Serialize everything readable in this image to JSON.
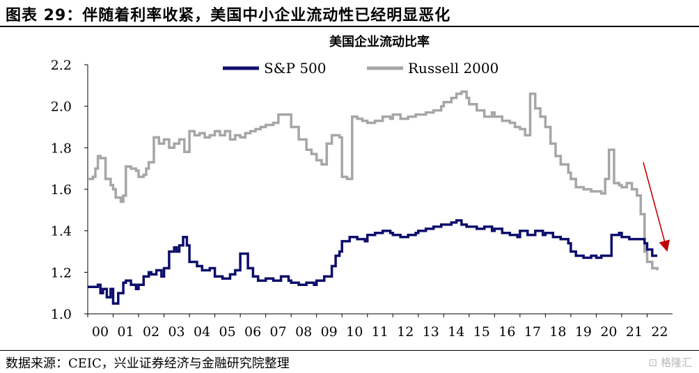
{
  "figure": {
    "title": "图表 29：伴随着利率收紧，美国中小企业流动性已经明显恶化",
    "source": "数据来源：CEIC，兴业证券经济与金融研究院整理",
    "watermark": "格隆汇"
  },
  "chart_data": {
    "type": "line",
    "title": "美国企业流动比率",
    "xlabel": "",
    "ylabel": "",
    "xlim": [
      2000,
      2023
    ],
    "ylim": [
      1.0,
      2.2
    ],
    "y_ticks": [
      1.0,
      1.2,
      1.4,
      1.6,
      1.8,
      2.0,
      2.2
    ],
    "x_ticks": [
      2000,
      2001,
      2002,
      2003,
      2004,
      2005,
      2006,
      2007,
      2008,
      2009,
      2010,
      2011,
      2012,
      2013,
      2014,
      2015,
      2016,
      2017,
      2018,
      2019,
      2020,
      2021,
      2022
    ],
    "x_tick_labels": [
      "00",
      "01",
      "02",
      "03",
      "04",
      "05",
      "06",
      "07",
      "08",
      "09",
      "10",
      "11",
      "12",
      "13",
      "14",
      "15",
      "16",
      "17",
      "18",
      "19",
      "20",
      "21",
      "22"
    ],
    "grid": false,
    "legend": "top-center",
    "annotation": "red arrow pointing down toward 2022 end values",
    "series": [
      {
        "name": "S&P 500",
        "color": "#0d0d6b",
        "x": [
          2000.0,
          2000.4,
          2000.5,
          2000.6,
          2000.75,
          2000.9,
          2001.0,
          2001.2,
          2001.4,
          2001.5,
          2001.7,
          2001.9,
          2002.0,
          2002.2,
          2002.4,
          2002.5,
          2002.7,
          2002.9,
          2003.0,
          2003.2,
          2003.4,
          2003.5,
          2003.6,
          2003.75,
          2003.9,
          2004.0,
          2004.3,
          2004.5,
          2004.8,
          2005.0,
          2005.3,
          2005.6,
          2005.8,
          2006.0,
          2006.3,
          2006.5,
          2006.7,
          2007.0,
          2007.3,
          2007.6,
          2007.9,
          2008.0,
          2008.3,
          2008.6,
          2008.9,
          2009.0,
          2009.3,
          2009.6,
          2009.75,
          2009.9,
          2010.0,
          2010.3,
          2010.6,
          2010.9,
          2011.0,
          2011.3,
          2011.6,
          2011.9,
          2012.0,
          2012.3,
          2012.6,
          2012.9,
          2013.0,
          2013.3,
          2013.6,
          2013.9,
          2014.0,
          2014.3,
          2014.5,
          2014.7,
          2014.9,
          2015.0,
          2015.3,
          2015.6,
          2015.9,
          2016.0,
          2016.3,
          2016.6,
          2016.9,
          2017.0,
          2017.3,
          2017.6,
          2017.9,
          2018.0,
          2018.3,
          2018.6,
          2018.9,
          2019.0,
          2019.2,
          2019.5,
          2019.8,
          2020.0,
          2020.2,
          2020.4,
          2020.6,
          2020.9,
          2021.0,
          2021.3,
          2021.6,
          2021.9,
          2022.0,
          2022.2,
          2022.4
        ],
        "y": [
          1.13,
          1.14,
          1.1,
          1.12,
          1.08,
          1.12,
          1.05,
          1.1,
          1.15,
          1.16,
          1.14,
          1.12,
          1.14,
          1.18,
          1.2,
          1.19,
          1.21,
          1.18,
          1.22,
          1.3,
          1.32,
          1.3,
          1.33,
          1.37,
          1.33,
          1.25,
          1.23,
          1.21,
          1.22,
          1.18,
          1.17,
          1.19,
          1.21,
          1.29,
          1.22,
          1.18,
          1.16,
          1.17,
          1.16,
          1.18,
          1.16,
          1.15,
          1.14,
          1.15,
          1.14,
          1.16,
          1.18,
          1.23,
          1.28,
          1.3,
          1.35,
          1.37,
          1.36,
          1.35,
          1.38,
          1.39,
          1.4,
          1.39,
          1.38,
          1.37,
          1.38,
          1.39,
          1.4,
          1.41,
          1.42,
          1.43,
          1.43,
          1.44,
          1.45,
          1.43,
          1.42,
          1.42,
          1.41,
          1.42,
          1.4,
          1.41,
          1.39,
          1.38,
          1.37,
          1.4,
          1.38,
          1.4,
          1.38,
          1.39,
          1.37,
          1.36,
          1.34,
          1.3,
          1.28,
          1.27,
          1.28,
          1.27,
          1.28,
          1.28,
          1.38,
          1.39,
          1.37,
          1.36,
          1.36,
          1.34,
          1.31,
          1.28,
          1.28
        ]
      },
      {
        "name": "Russell 2000",
        "color": "#a6a6a6",
        "x": [
          2000.0,
          2000.2,
          2000.3,
          2000.4,
          2000.5,
          2000.7,
          2000.9,
          2001.0,
          2001.1,
          2001.3,
          2001.4,
          2001.5,
          2001.7,
          2001.9,
          2002.0,
          2002.2,
          2002.3,
          2002.4,
          2002.6,
          2002.8,
          2003.0,
          2003.2,
          2003.4,
          2003.6,
          2003.8,
          2004.0,
          2004.2,
          2004.4,
          2004.6,
          2004.8,
          2005.0,
          2005.2,
          2005.4,
          2005.6,
          2005.8,
          2006.0,
          2006.2,
          2006.4,
          2006.6,
          2006.8,
          2007.0,
          2007.3,
          2007.5,
          2007.8,
          2008.0,
          2008.3,
          2008.6,
          2008.8,
          2009.0,
          2009.2,
          2009.4,
          2009.6,
          2009.9,
          2010.0,
          2010.2,
          2010.4,
          2010.6,
          2010.8,
          2011.0,
          2011.3,
          2011.6,
          2011.9,
          2012.0,
          2012.3,
          2012.6,
          2012.9,
          2013.0,
          2013.3,
          2013.6,
          2013.9,
          2014.0,
          2014.3,
          2014.5,
          2014.7,
          2014.9,
          2015.0,
          2015.3,
          2015.6,
          2015.9,
          2016.0,
          2016.3,
          2016.6,
          2016.8,
          2017.0,
          2017.2,
          2017.4,
          2017.6,
          2017.8,
          2018.0,
          2018.2,
          2018.4,
          2018.6,
          2018.9,
          2019.0,
          2019.2,
          2019.5,
          2019.8,
          2020.0,
          2020.2,
          2020.35,
          2020.5,
          2020.7,
          2020.9,
          2021.0,
          2021.2,
          2021.4,
          2021.6,
          2021.75,
          2021.9,
          2022.0,
          2022.2,
          2022.4
        ],
        "y": [
          1.65,
          1.66,
          1.7,
          1.76,
          1.75,
          1.65,
          1.62,
          1.6,
          1.56,
          1.54,
          1.57,
          1.71,
          1.7,
          1.69,
          1.66,
          1.67,
          1.7,
          1.73,
          1.85,
          1.82,
          1.84,
          1.8,
          1.82,
          1.84,
          1.78,
          1.88,
          1.86,
          1.87,
          1.85,
          1.86,
          1.88,
          1.86,
          1.88,
          1.84,
          1.86,
          1.85,
          1.87,
          1.88,
          1.89,
          1.9,
          1.91,
          1.92,
          1.96,
          1.96,
          1.9,
          1.84,
          1.79,
          1.77,
          1.74,
          1.72,
          1.82,
          1.86,
          1.85,
          1.66,
          1.65,
          1.95,
          1.94,
          1.93,
          1.92,
          1.93,
          1.95,
          1.94,
          1.96,
          1.94,
          1.95,
          1.96,
          1.96,
          1.97,
          1.98,
          2.0,
          2.02,
          2.04,
          2.06,
          2.07,
          2.04,
          2.01,
          1.98,
          1.95,
          1.97,
          1.95,
          1.93,
          1.92,
          1.9,
          1.89,
          1.86,
          2.06,
          1.99,
          1.95,
          1.9,
          1.82,
          1.76,
          1.72,
          1.68,
          1.65,
          1.61,
          1.6,
          1.59,
          1.59,
          1.58,
          1.65,
          1.79,
          1.63,
          1.62,
          1.61,
          1.63,
          1.6,
          1.57,
          1.48,
          1.3,
          1.25,
          1.22,
          1.21
        ]
      }
    ]
  }
}
